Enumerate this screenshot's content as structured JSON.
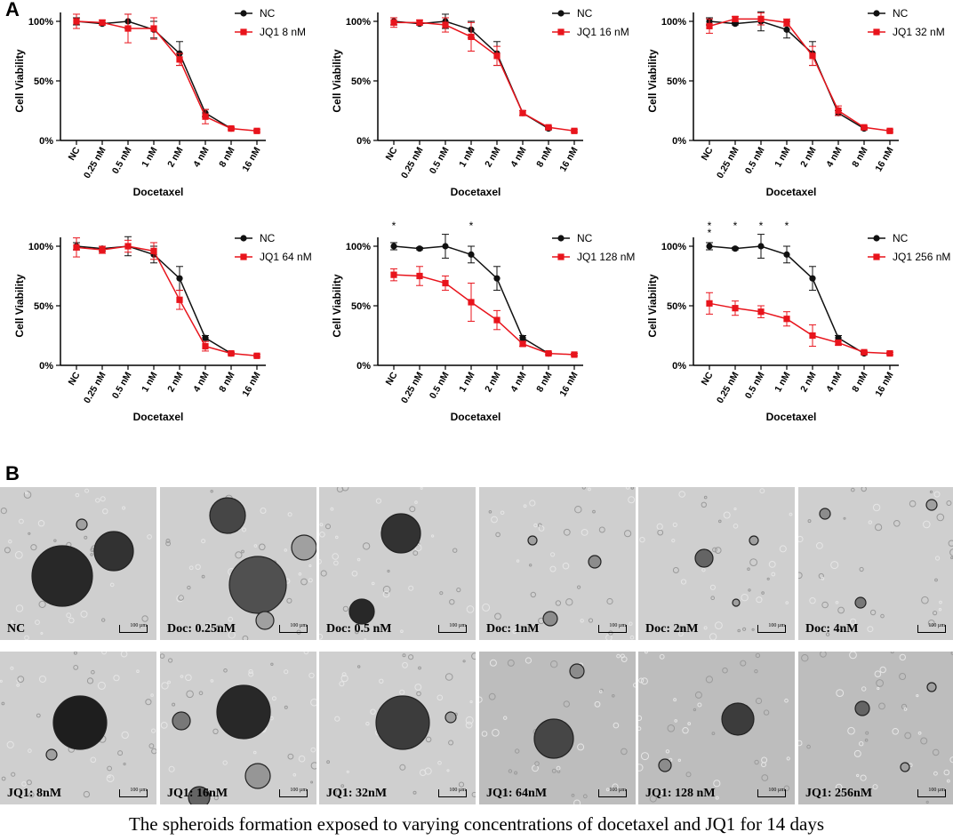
{
  "panel_labels": {
    "a": "A",
    "b": "B"
  },
  "caption": "The spheroids formation exposed to varying concentrations of docetaxel and JQ1 for 14 days",
  "colors": {
    "nc": "#111111",
    "jq1": "#e8141c"
  },
  "chart_data": [
    {
      "type": "line",
      "categories": [
        "NC",
        "0.25 nM",
        "0.5 nM",
        "1 nM",
        "2 nM",
        "4 nM",
        "8 nM",
        "16 nM"
      ],
      "xlabel": "Docetaxel",
      "ylabel": "Cell Viability",
      "yticks": [
        "0%",
        "50%",
        "100%"
      ],
      "ylim": [
        0,
        115
      ],
      "legend_position": "top-right",
      "series": [
        {
          "name": "NC",
          "values": [
            100,
            98,
            100,
            93,
            73,
            23,
            10,
            null
          ],
          "errors": [
            3,
            1,
            6,
            7,
            10,
            3,
            1,
            0
          ]
        },
        {
          "name": "JQ1 8 nM",
          "values": [
            100,
            99,
            94,
            94,
            68,
            20,
            10,
            8
          ],
          "errors": [
            6,
            2,
            12,
            9,
            5,
            6,
            1,
            1
          ]
        }
      ],
      "significance": [
        "",
        "",
        "",
        "",
        "",
        "",
        "",
        ""
      ]
    },
    {
      "type": "line",
      "categories": [
        "NC",
        "0.25 nM",
        "0.5 nM",
        "1 nM",
        "2 nM",
        "4 nM",
        "8 nM",
        "16 nM"
      ],
      "xlabel": "Docetaxel",
      "ylabel": "Cell Viability",
      "yticks": [
        "0%",
        "50%",
        "100%"
      ],
      "ylim": [
        0,
        115
      ],
      "legend_position": "top-right",
      "series": [
        {
          "name": "NC",
          "values": [
            100,
            98,
            100,
            93,
            73,
            23,
            10,
            null
          ],
          "errors": [
            3,
            1,
            6,
            7,
            10,
            2,
            1,
            0
          ]
        },
        {
          "name": "JQ1 16 nM",
          "values": [
            99,
            99,
            97,
            87,
            71,
            23,
            11,
            8
          ],
          "errors": [
            4,
            2,
            6,
            12,
            8,
            2,
            1,
            1
          ]
        }
      ],
      "significance": [
        "",
        "",
        "",
        "",
        "",
        "",
        "",
        ""
      ]
    },
    {
      "type": "line",
      "categories": [
        "NC",
        "0.25 nM",
        "0.5 nM",
        "1 nM",
        "2 nM",
        "4 nM",
        "8 nM",
        "16 nM"
      ],
      "xlabel": "Docetaxel",
      "ylabel": "Cell Viability",
      "yticks": [
        "0%",
        "50%",
        "100%"
      ],
      "ylim": [
        0,
        115
      ],
      "legend_position": "top-right",
      "series": [
        {
          "name": "NC",
          "values": [
            100,
            98,
            100,
            93,
            73,
            23,
            10,
            null
          ],
          "errors": [
            3,
            1,
            8,
            7,
            10,
            2,
            1,
            0
          ]
        },
        {
          "name": "JQ1 32 nM",
          "values": [
            96,
            102,
            102,
            99,
            71,
            25,
            11,
            8
          ],
          "errors": [
            6,
            2,
            5,
            3,
            8,
            4,
            1,
            1
          ]
        }
      ],
      "significance": [
        "",
        "",
        "",
        "",
        "",
        "",
        "",
        ""
      ]
    },
    {
      "type": "line",
      "categories": [
        "NC",
        "0.25 nM",
        "0.5 nM",
        "1 nM",
        "2 nM",
        "4 nM",
        "8 nM",
        "16 nM"
      ],
      "xlabel": "Docetaxel",
      "ylabel": "Cell Viability",
      "yticks": [
        "0%",
        "50%",
        "100%"
      ],
      "ylim": [
        0,
        115
      ],
      "legend_position": "top-right",
      "series": [
        {
          "name": "NC",
          "values": [
            100,
            98,
            100,
            93,
            73,
            23,
            10,
            null
          ],
          "errors": [
            3,
            2,
            8,
            7,
            10,
            2,
            1,
            0
          ]
        },
        {
          "name": "JQ1 64 nM",
          "values": [
            99,
            97,
            100,
            96,
            55,
            16,
            10,
            8
          ],
          "errors": [
            8,
            3,
            5,
            7,
            8,
            4,
            1,
            1
          ]
        }
      ],
      "significance": [
        "",
        "",
        "",
        "",
        "",
        "",
        "",
        ""
      ]
    },
    {
      "type": "line",
      "categories": [
        "NC",
        "0.25 nM",
        "0.5 nM",
        "1 nM",
        "2 nM",
        "4 nM",
        "8 nM",
        "16 nM"
      ],
      "xlabel": "Docetaxel",
      "ylabel": "Cell Viability",
      "yticks": [
        "0%",
        "50%",
        "100%"
      ],
      "ylim": [
        0,
        115
      ],
      "legend_position": "top-right",
      "series": [
        {
          "name": "NC",
          "values": [
            100,
            98,
            100,
            93,
            73,
            23,
            10,
            null
          ],
          "errors": [
            3,
            1,
            10,
            7,
            10,
            2,
            1,
            0
          ]
        },
        {
          "name": "JQ1 128 nM",
          "values": [
            76,
            75,
            69,
            53,
            38,
            18,
            10,
            9
          ],
          "errors": [
            5,
            8,
            6,
            16,
            8,
            2,
            1,
            1
          ]
        }
      ],
      "significance": [
        "*",
        "",
        "",
        "*",
        "",
        "",
        "",
        ""
      ]
    },
    {
      "type": "line",
      "categories": [
        "NC",
        "0.25 nM",
        "0.5 nM",
        "1 nM",
        "2 nM",
        "4 nM",
        "8 nM",
        "16 nM"
      ],
      "xlabel": "Docetaxel",
      "ylabel": "Cell Viability",
      "yticks": [
        "0%",
        "50%",
        "100%"
      ],
      "ylim": [
        0,
        115
      ],
      "legend_position": "top-right",
      "series": [
        {
          "name": "NC",
          "values": [
            100,
            98,
            100,
            93,
            73,
            23,
            10,
            null
          ],
          "errors": [
            3,
            1,
            10,
            7,
            10,
            2,
            1,
            0
          ]
        },
        {
          "name": "JQ1 256 nM",
          "values": [
            52,
            48,
            45,
            39,
            25,
            19,
            11,
            10
          ],
          "errors": [
            9,
            6,
            5,
            6,
            9,
            2,
            1,
            1
          ]
        }
      ],
      "significance": [
        "**",
        "*",
        "*",
        "*",
        "",
        "",
        "",
        ""
      ]
    }
  ],
  "spheroid_images": {
    "top_row": [
      {
        "label": "NC",
        "scale": "100 µm"
      },
      {
        "label": "Doc: 0.25nM",
        "scale": "100 µm"
      },
      {
        "label": "Doc: 0.5 nM",
        "scale": "100 µm"
      },
      {
        "label": "Doc: 1nM",
        "scale": "100 µm"
      },
      {
        "label": "Doc: 2nM",
        "scale": "100 µm"
      },
      {
        "label": "Doc: 4nM",
        "scale": "100 µm"
      }
    ],
    "bottom_row": [
      {
        "label": "JQ1: 8nM",
        "scale": "100 µm"
      },
      {
        "label": "JQ1: 16nM",
        "scale": "100 µm"
      },
      {
        "label": "JQ1: 32nM",
        "scale": "100 µm"
      },
      {
        "label": "JQ1: 64nM",
        "scale": "100 µm"
      },
      {
        "label": "JQ1: 128 nM",
        "scale": "100 µm"
      },
      {
        "label": "JQ1: 256nM",
        "scale": "100 µm"
      }
    ]
  }
}
